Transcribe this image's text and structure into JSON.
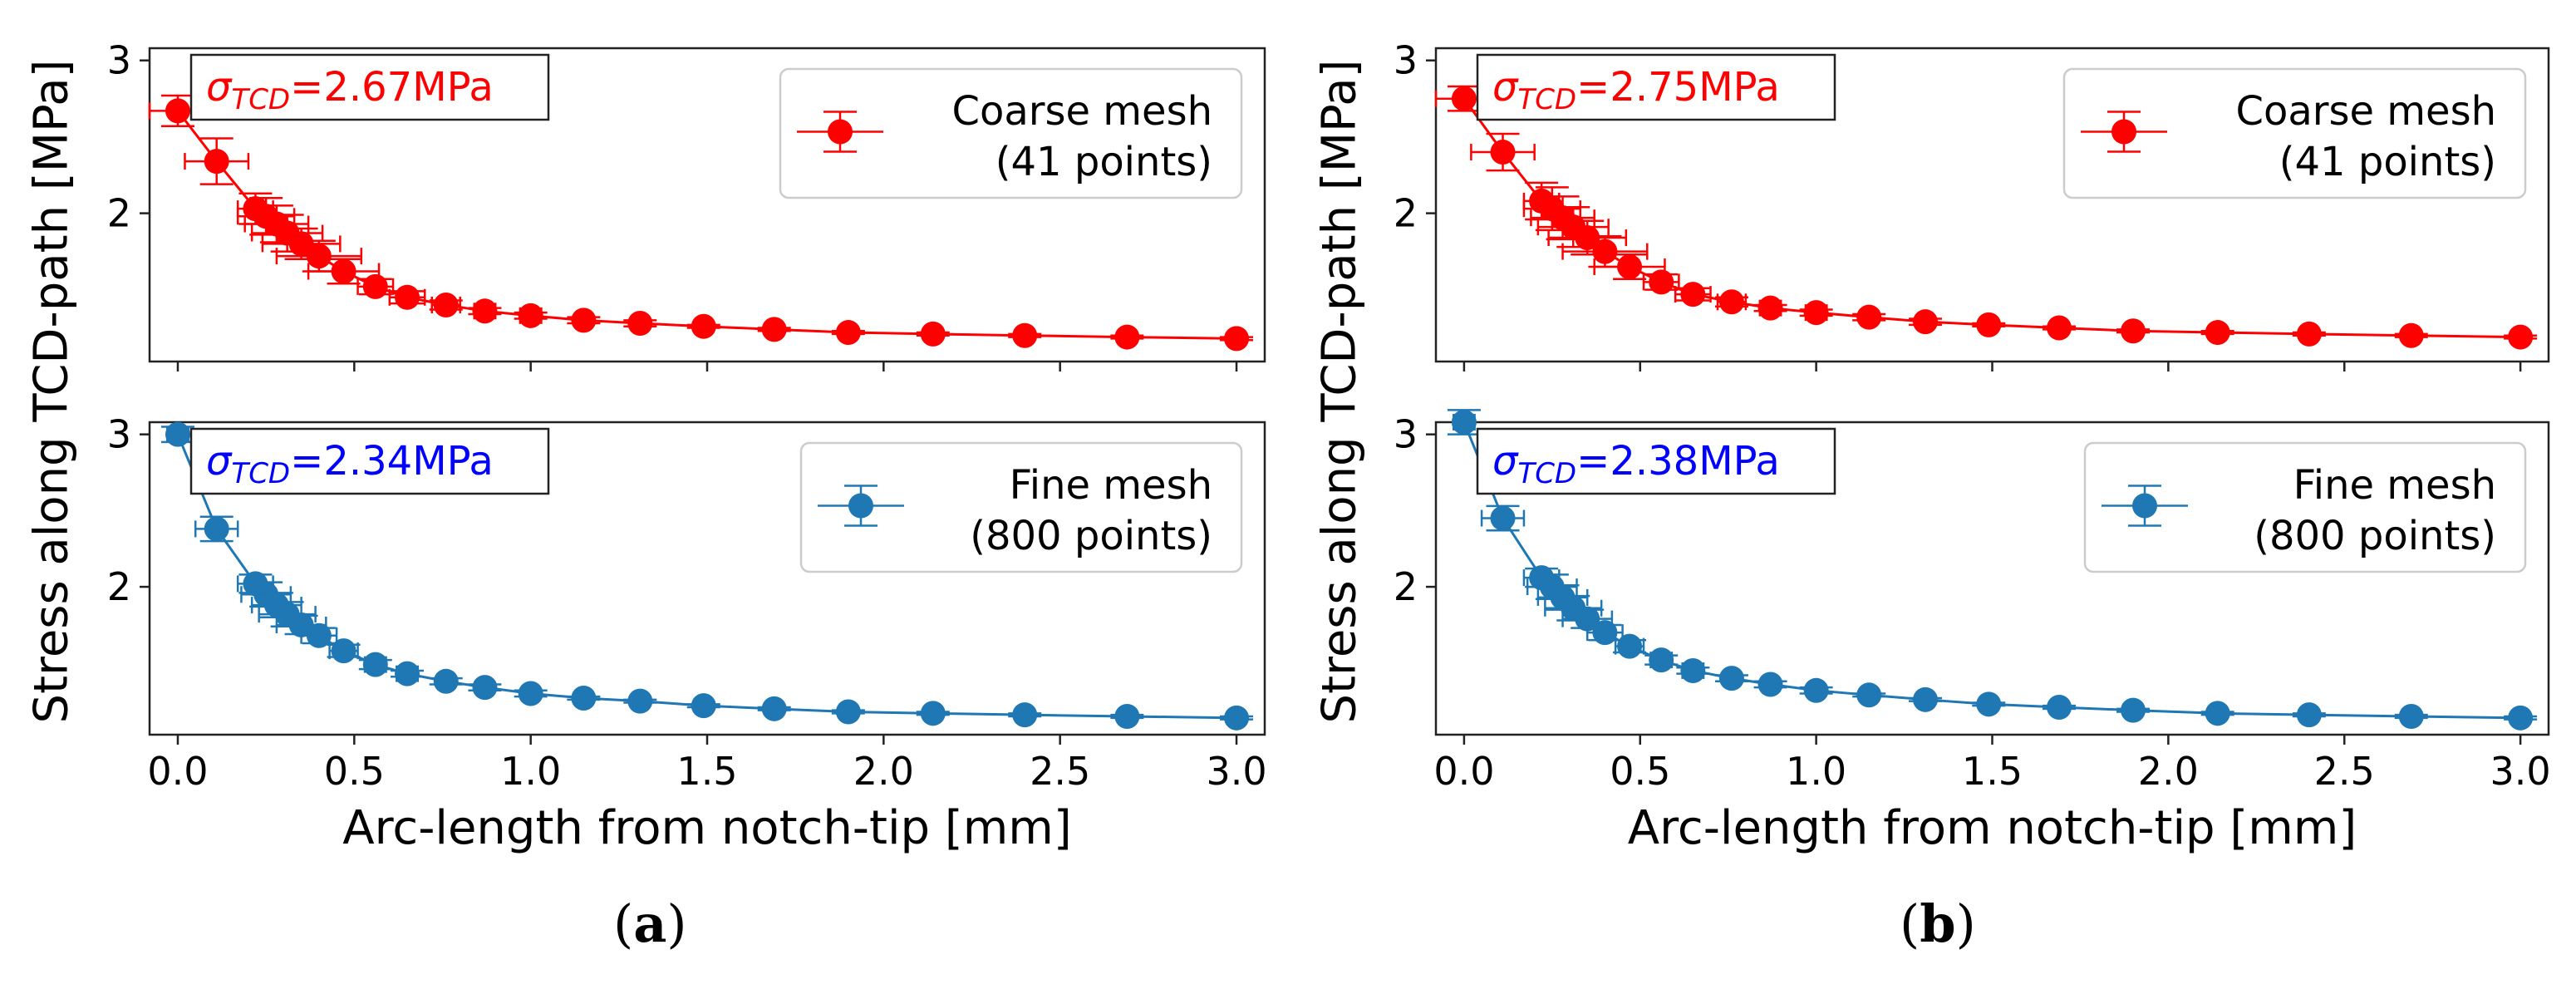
{
  "figure": {
    "ylabel": "Stress along TCD-path [MPa]",
    "xlabel": "Arc-length from notch-tip [mm]",
    "xticks": [
      0.0,
      0.5,
      1.0,
      1.5,
      2.0,
      2.5,
      3.0
    ],
    "xtick_labels": [
      "0.0",
      "0.5",
      "1.0",
      "1.5",
      "2.0",
      "2.5",
      "3.0"
    ],
    "xlim": [
      -0.08,
      3.08
    ],
    "ylim": [
      1.03,
      3.08
    ],
    "yticks": [
      2,
      3
    ],
    "ytick_labels": [
      "2",
      "3"
    ]
  },
  "colors": {
    "coarse": "#ff0000",
    "fine": "#1f77b4",
    "sigma_coarse_text": "#ff0000",
    "sigma_fine_text": "#0000ff"
  },
  "panels": [
    {
      "caption_open": "(",
      "caption_letter": "a",
      "caption_close": ")",
      "plots": [
        {
          "series_key": "coarse",
          "sigma_symbol": "σ",
          "sigma_sub": "TCD",
          "sigma_value": "=2.67MPa",
          "legend_line1": "Coarse mesh",
          "legend_line2": "(41 points)"
        },
        {
          "series_key": "fine",
          "sigma_symbol": "σ",
          "sigma_sub": "TCD",
          "sigma_value": "=2.34MPa",
          "legend_line1": "Fine mesh",
          "legend_line2": "(800 points)"
        }
      ]
    },
    {
      "caption_open": "(",
      "caption_letter": "b",
      "caption_close": ")",
      "plots": [
        {
          "series_key": "coarse",
          "sigma_symbol": "σ",
          "sigma_sub": "TCD",
          "sigma_value": "=2.75MPa",
          "legend_line1": "Coarse mesh",
          "legend_line2": "(41 points)"
        },
        {
          "series_key": "fine",
          "sigma_symbol": "σ",
          "sigma_sub": "TCD",
          "sigma_value": "=2.38MPa",
          "legend_line1": "Fine mesh",
          "legend_line2": "(800 points)"
        }
      ]
    }
  ],
  "chart_data": [
    {
      "type": "line",
      "panel": "a",
      "subplot": "top",
      "title": "",
      "xlabel": "Arc-length from notch-tip [mm]",
      "ylabel": "Stress along TCD-path [MPa]",
      "legend": "Coarse mesh (41 points)",
      "annotation": "σTCD=2.67MPa",
      "x": [
        0.0,
        0.11,
        0.22,
        0.25,
        0.28,
        0.31,
        0.35,
        0.4,
        0.47,
        0.56,
        0.65,
        0.76,
        0.87,
        1.0,
        1.15,
        1.31,
        1.49,
        1.69,
        1.9,
        2.14,
        2.4,
        2.69,
        3.0
      ],
      "y": [
        2.67,
        2.34,
        2.03,
        1.98,
        1.93,
        1.87,
        1.8,
        1.72,
        1.62,
        1.52,
        1.45,
        1.4,
        1.36,
        1.33,
        1.3,
        1.28,
        1.26,
        1.24,
        1.22,
        1.21,
        1.2,
        1.19,
        1.18
      ],
      "xerr": [
        0.08,
        0.09,
        0.05,
        0.08,
        0.09,
        0.1,
        0.11,
        0.12,
        0.1,
        0.05,
        0.05,
        0.04,
        0.03,
        0.03,
        0.02,
        0.02,
        0.02,
        0.02,
        0.01,
        0.01,
        0.01,
        0.01,
        0.01
      ],
      "yerr": [
        0.1,
        0.15,
        0.1,
        0.12,
        0.12,
        0.12,
        0.1,
        0.1,
        0.08,
        0.05,
        0.04,
        0.03,
        0.02,
        0.02,
        0.02,
        0.02,
        0.01,
        0.01,
        0.01,
        0.01,
        0.01,
        0.01,
        0.01
      ]
    },
    {
      "type": "line",
      "panel": "a",
      "subplot": "bottom",
      "title": "",
      "xlabel": "Arc-length from notch-tip [mm]",
      "ylabel": "Stress along TCD-path [MPa]",
      "legend": "Fine mesh (800 points)",
      "annotation": "σTCD=2.34MPa",
      "x": [
        0.0,
        0.11,
        0.22,
        0.25,
        0.28,
        0.31,
        0.35,
        0.4,
        0.47,
        0.56,
        0.65,
        0.76,
        0.87,
        1.0,
        1.15,
        1.31,
        1.49,
        1.69,
        1.9,
        2.14,
        2.4,
        2.69,
        3.0
      ],
      "y": [
        3.0,
        2.38,
        2.02,
        1.95,
        1.88,
        1.82,
        1.75,
        1.68,
        1.58,
        1.49,
        1.43,
        1.38,
        1.34,
        1.3,
        1.27,
        1.25,
        1.22,
        1.2,
        1.18,
        1.17,
        1.16,
        1.15,
        1.14
      ],
      "xerr": [
        0.03,
        0.06,
        0.05,
        0.07,
        0.07,
        0.08,
        0.07,
        0.05,
        0.04,
        0.03,
        0.03,
        0.02,
        0.02,
        0.02,
        0.02,
        0.02,
        0.01,
        0.01,
        0.01,
        0.01,
        0.01,
        0.01,
        0.01
      ],
      "yerr": [
        0.05,
        0.08,
        0.06,
        0.08,
        0.08,
        0.08,
        0.06,
        0.05,
        0.04,
        0.03,
        0.02,
        0.02,
        0.02,
        0.02,
        0.01,
        0.01,
        0.01,
        0.01,
        0.01,
        0.01,
        0.01,
        0.01,
        0.01
      ]
    },
    {
      "type": "line",
      "panel": "b",
      "subplot": "top",
      "title": "",
      "xlabel": "Arc-length from notch-tip [mm]",
      "ylabel": "Stress along TCD-path [MPa]",
      "legend": "Coarse mesh (41 points)",
      "annotation": "σTCD=2.75MPa",
      "x": [
        0.0,
        0.11,
        0.22,
        0.25,
        0.28,
        0.31,
        0.35,
        0.4,
        0.47,
        0.56,
        0.65,
        0.76,
        0.87,
        1.0,
        1.15,
        1.31,
        1.49,
        1.69,
        1.9,
        2.14,
        2.4,
        2.69,
        3.0
      ],
      "y": [
        2.75,
        2.4,
        2.08,
        2.03,
        1.97,
        1.91,
        1.84,
        1.75,
        1.65,
        1.55,
        1.47,
        1.42,
        1.38,
        1.35,
        1.32,
        1.29,
        1.27,
        1.25,
        1.23,
        1.22,
        1.21,
        1.2,
        1.19
      ],
      "xerr": [
        0.08,
        0.09,
        0.05,
        0.08,
        0.09,
        0.1,
        0.11,
        0.12,
        0.1,
        0.05,
        0.05,
        0.04,
        0.03,
        0.03,
        0.02,
        0.02,
        0.02,
        0.02,
        0.01,
        0.01,
        0.01,
        0.01,
        0.01
      ],
      "yerr": [
        0.08,
        0.12,
        0.12,
        0.14,
        0.14,
        0.13,
        0.11,
        0.1,
        0.08,
        0.05,
        0.04,
        0.03,
        0.02,
        0.02,
        0.02,
        0.02,
        0.01,
        0.01,
        0.01,
        0.01,
        0.01,
        0.01,
        0.01
      ]
    },
    {
      "type": "line",
      "panel": "b",
      "subplot": "bottom",
      "title": "",
      "xlabel": "Arc-length from notch-tip [mm]",
      "ylabel": "Stress along TCD-path [MPa]",
      "legend": "Fine mesh (800 points)",
      "annotation": "σTCD=2.38MPa",
      "x": [
        0.0,
        0.11,
        0.22,
        0.25,
        0.28,
        0.31,
        0.35,
        0.4,
        0.47,
        0.56,
        0.65,
        0.76,
        0.87,
        1.0,
        1.15,
        1.31,
        1.49,
        1.69,
        1.9,
        2.14,
        2.4,
        2.69,
        3.0
      ],
      "y": [
        3.08,
        2.45,
        2.06,
        2.0,
        1.93,
        1.86,
        1.79,
        1.7,
        1.61,
        1.52,
        1.45,
        1.4,
        1.36,
        1.32,
        1.29,
        1.26,
        1.23,
        1.21,
        1.19,
        1.17,
        1.16,
        1.15,
        1.14
      ],
      "xerr": [
        0.03,
        0.06,
        0.05,
        0.07,
        0.07,
        0.08,
        0.07,
        0.05,
        0.04,
        0.03,
        0.03,
        0.02,
        0.02,
        0.02,
        0.02,
        0.02,
        0.01,
        0.01,
        0.01,
        0.01,
        0.01,
        0.01,
        0.01
      ],
      "yerr": [
        0.08,
        0.08,
        0.06,
        0.08,
        0.08,
        0.08,
        0.06,
        0.05,
        0.04,
        0.03,
        0.02,
        0.02,
        0.02,
        0.02,
        0.01,
        0.01,
        0.01,
        0.01,
        0.01,
        0.01,
        0.01,
        0.01,
        0.01
      ]
    }
  ]
}
